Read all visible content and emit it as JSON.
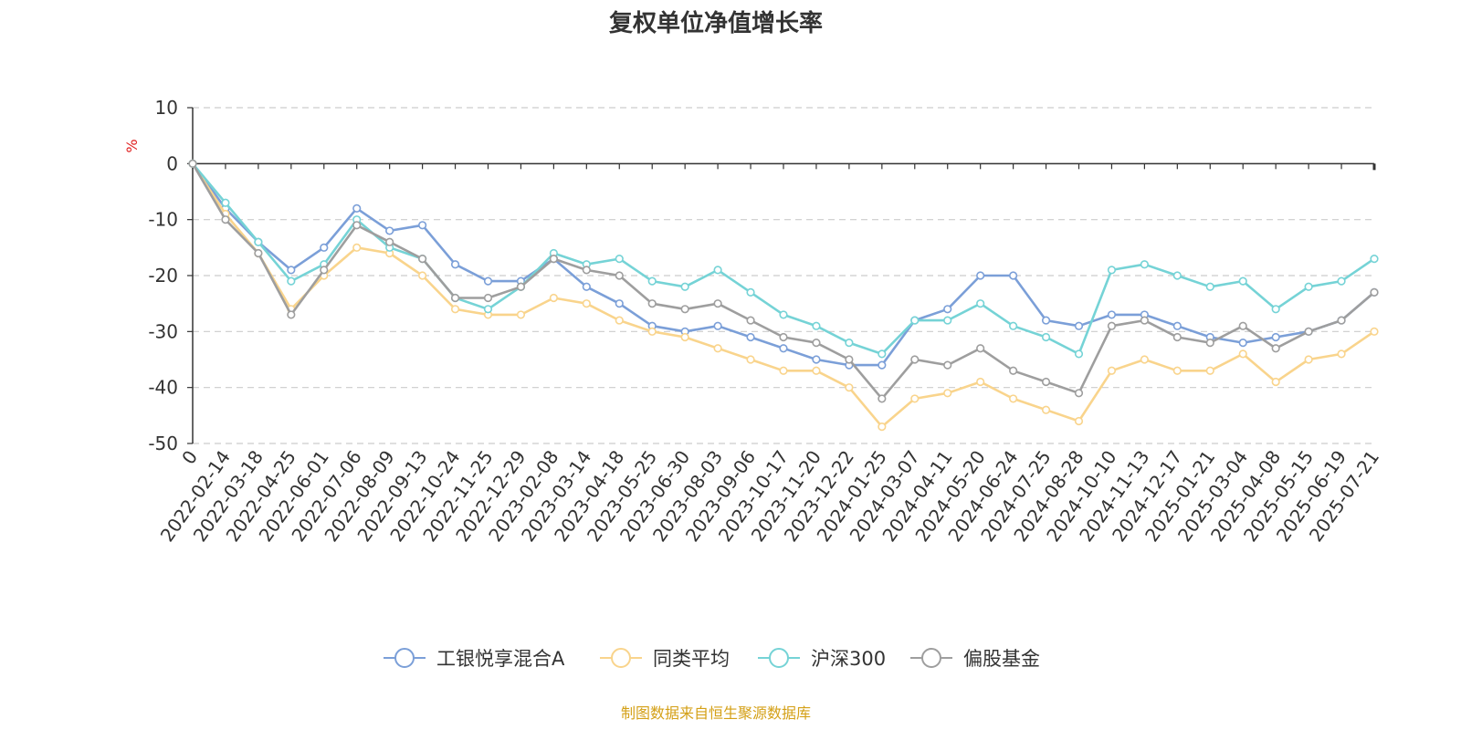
{
  "chart_data": {
    "type": "line",
    "title": "复权单位净值增长率",
    "ylabel": "%",
    "ylim": [
      -50,
      10
    ],
    "yticks": [
      "10",
      "0",
      "-10",
      "-20",
      "-30",
      "-40",
      "-50"
    ],
    "grid": true,
    "legend_position": "bottom",
    "categories": [
      "0",
      "2022-02-14",
      "2022-03-18",
      "2022-04-25",
      "2022-06-01",
      "2022-07-06",
      "2022-08-09",
      "2022-09-13",
      "2022-10-24",
      "2022-11-25",
      "2022-12-29",
      "2023-02-08",
      "2023-03-14",
      "2023-04-18",
      "2023-05-25",
      "2023-06-30",
      "2023-08-03",
      "2023-09-06",
      "2023-10-17",
      "2023-11-20",
      "2023-12-22",
      "2024-01-25",
      "2024-03-07",
      "2024-04-11",
      "2024-05-20",
      "2024-06-24",
      "2024-07-25",
      "2024-08-28",
      "2024-10-10",
      "2024-11-13",
      "2024-12-17",
      "2025-01-21",
      "2025-03-04",
      "2025-04-08",
      "2025-05-15",
      "2025-06-19",
      "2025-07-21"
    ],
    "series": [
      {
        "name": "工银悦享混合A",
        "color": "#7b9fd8",
        "values": [
          0,
          -8,
          -14,
          -19,
          -15,
          -8,
          -12,
          -11,
          -18,
          -21,
          -21,
          -17,
          -22,
          -25,
          -29,
          -30,
          -29,
          -31,
          -33,
          -35,
          -36,
          -36,
          -28,
          -26,
          -20,
          -20,
          -28,
          -29,
          -27,
          -27,
          -29,
          -31,
          -32,
          -31,
          -30,
          -28,
          -23
        ]
      },
      {
        "name": "同类平均",
        "color": "#f9d48c",
        "values": [
          0,
          -9,
          -16,
          -26,
          -20,
          -15,
          -16,
          -20,
          -26,
          -27,
          -27,
          -24,
          -25,
          -28,
          -30,
          -31,
          -33,
          -35,
          -37,
          -37,
          -40,
          -47,
          -42,
          -41,
          -39,
          -42,
          -44,
          -46,
          -37,
          -35,
          -37,
          -37,
          -34,
          -39,
          -35,
          -34,
          -30
        ]
      },
      {
        "name": "沪深300",
        "color": "#75d3d6",
        "values": [
          0,
          -7,
          -14,
          -21,
          -18,
          -10,
          -15,
          -17,
          -24,
          -26,
          -22,
          -16,
          -18,
          -17,
          -21,
          -22,
          -19,
          -23,
          -27,
          -29,
          -32,
          -34,
          -28,
          -28,
          -25,
          -29,
          -31,
          -34,
          -19,
          -18,
          -20,
          -22,
          -21,
          -26,
          -22,
          -21,
          -17
        ]
      },
      {
        "name": "偏股基金",
        "color": "#9e9e9e",
        "values": [
          0,
          -10,
          -16,
          -27,
          -19,
          -11,
          -14,
          -17,
          -24,
          -24,
          -22,
          -17,
          -19,
          -20,
          -25,
          -26,
          -25,
          -28,
          -31,
          -32,
          -35,
          -42,
          -35,
          -36,
          -33,
          -37,
          -39,
          -41,
          -29,
          -28,
          -31,
          -32,
          -29,
          -33,
          -30,
          -28,
          -23
        ]
      }
    ],
    "source_note": "制图数据来自恒生聚源数据库"
  }
}
